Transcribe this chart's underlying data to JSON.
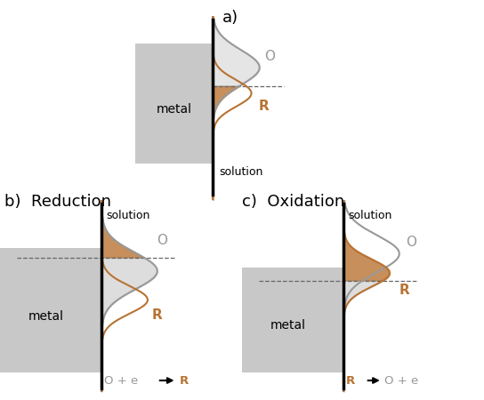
{
  "bg_color": "#ffffff",
  "metal_color": "#c8c8c8",
  "interface_color": "#000000",
  "O_color": "#999999",
  "R_color": "#b87333",
  "fill_brown": "#b87333",
  "fill_gray": "#aaaaaa",
  "dashed_color": "#666666",
  "text_color": "#000000",
  "label_a": "a)",
  "label_b": "b)  Reduction",
  "label_c": "c)  Oxidation",
  "label_O": "O",
  "label_R": "R",
  "label_solution": "solution",
  "label_metal": "metal"
}
